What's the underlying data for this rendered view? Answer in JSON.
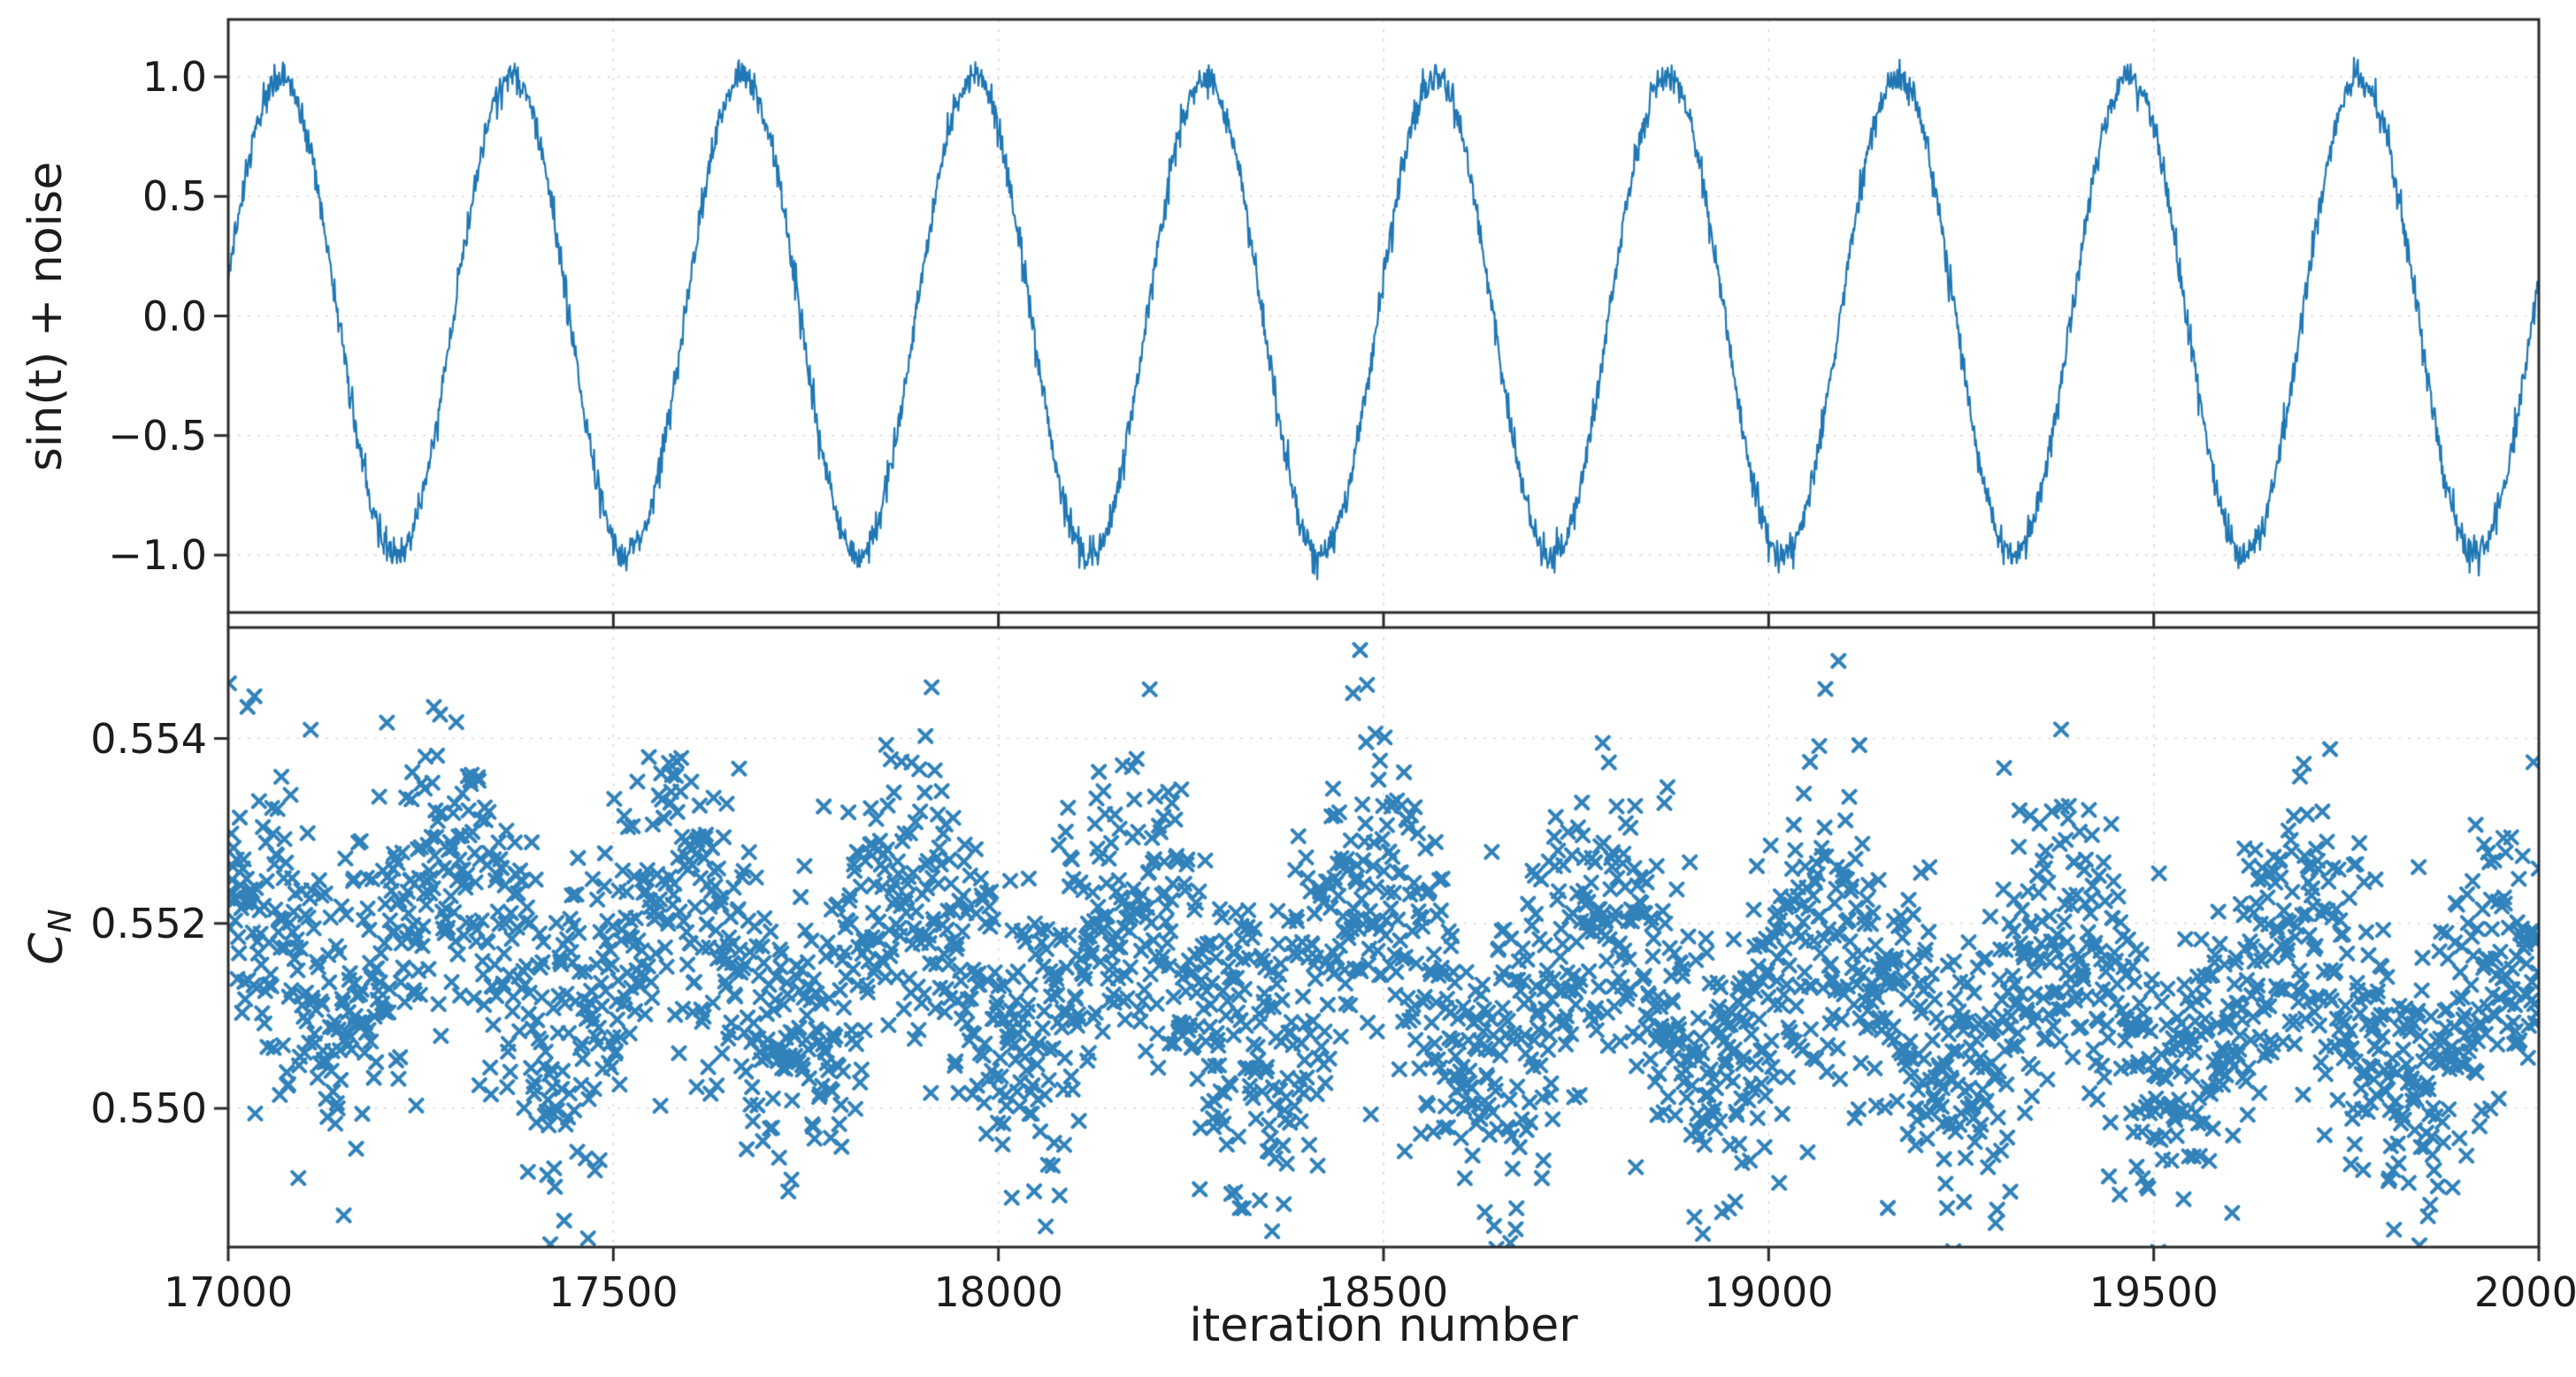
{
  "figure": {
    "background": "#ffffff",
    "accent_color": "#1f77b4",
    "grid_color": "#d9d9d9",
    "spine_color": "#2b2b2b",
    "text_color": "#1c1c1c"
  },
  "x_axis": {
    "label": "iteration number",
    "range": [
      17000,
      20000
    ],
    "tick_values": [
      17000,
      17500,
      18000,
      18500,
      19000,
      19500,
      20000
    ],
    "tick_labels": [
      "17000",
      "17500",
      "18000",
      "18500",
      "19000",
      "19500",
      "20000"
    ]
  },
  "chart_data": [
    {
      "type": "line",
      "ylabel": "sin(t) + noise",
      "ylim": [
        -1.24,
        1.24
      ],
      "ytick_values": [
        1.0,
        0.5,
        0.0,
        -0.5,
        -1.0
      ],
      "ytick_labels": [
        "1.0",
        "0.5",
        "0.0",
        "−0.5",
        "−1.0"
      ],
      "x_range": [
        17000,
        20000
      ],
      "n_points": 3000,
      "grid": true,
      "legend": false,
      "series": {
        "name": "sin(t) + noise",
        "model": "y = amplitude * sin(2*pi*(x - 17000)/period + phase) + gaussian_noise",
        "amplitude": 1.0,
        "period": 300,
        "phase": 0.15,
        "noise_std": 0.035
      }
    },
    {
      "type": "scatter",
      "marker": "x",
      "ylabel_base": "C",
      "ylabel_sub": "N",
      "ylim": [
        0.5485,
        0.5552
      ],
      "ytick_values": [
        0.554,
        0.552,
        0.55
      ],
      "ytick_labels": [
        "0.554",
        "0.552",
        "0.550"
      ],
      "x_range": [
        17000,
        20000
      ],
      "n_points": 3000,
      "grid": true,
      "legend": false,
      "series": {
        "name": "C_N",
        "model": "y = linear_trend(x) + osc_amplitude * sin(2*pi*(x - 17000)/period + phase) + gaussian_noise",
        "trend_start": 0.55185,
        "trend_end": 0.55095,
        "osc_amplitude": 0.0008,
        "period": 300,
        "phase": 1.95,
        "noise_std": 0.00082
      }
    }
  ]
}
